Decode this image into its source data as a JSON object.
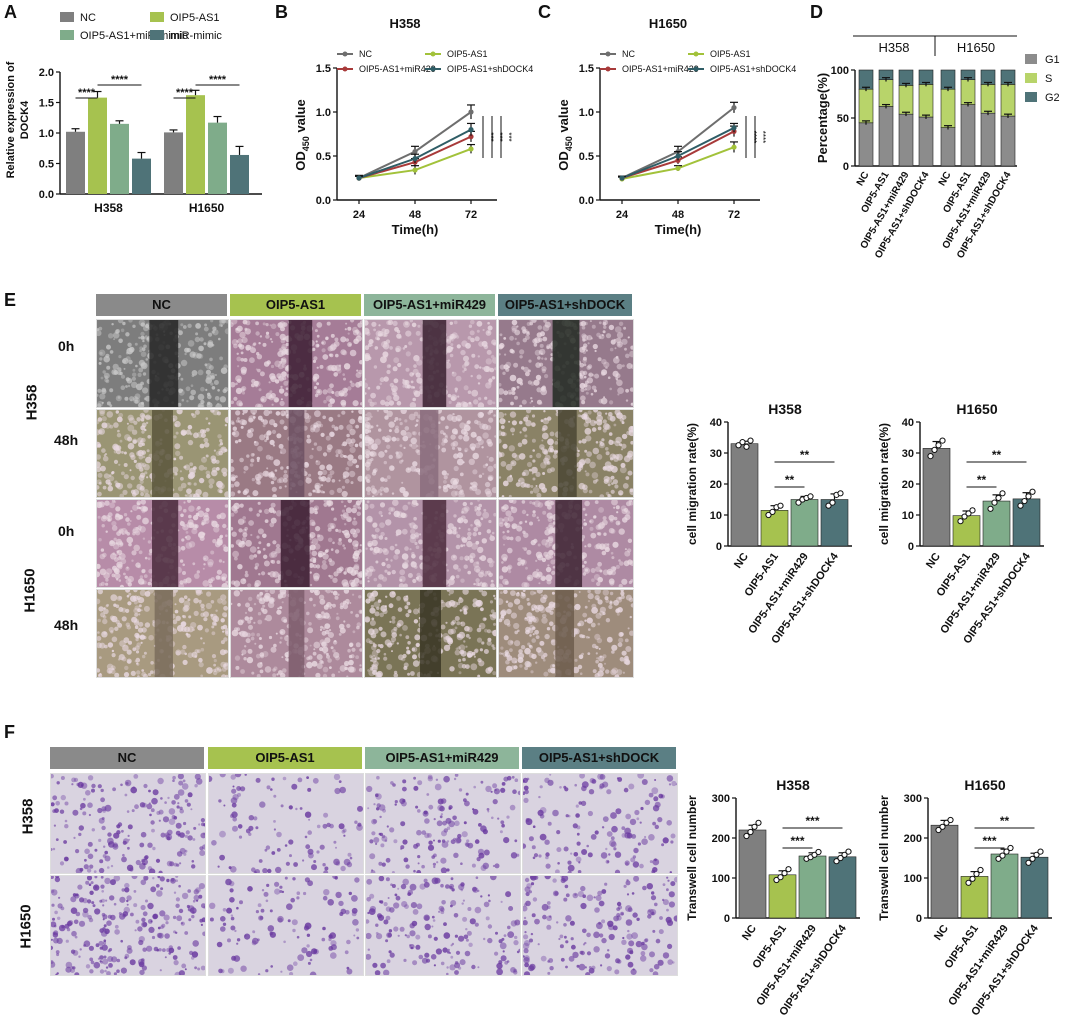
{
  "panel_letters": [
    "A",
    "B",
    "C",
    "D",
    "E",
    "F"
  ],
  "colors": {
    "nc": "#7f7f7f",
    "oip": "#a6c24f",
    "mir": "#7fac8a",
    "sh": "#4f7378",
    "line_nc": "#6e6e6e",
    "line_oip": "#a2c23a",
    "line_mir": "#a83a3a",
    "line_sh": "#2f5d66",
    "g1": "#8c8c8c",
    "s": "#b8d46a",
    "g2": "#4f7378",
    "scratch_grey": "#6f6f6f",
    "scratch_pink": "#b58aa0",
    "scratch_olive": "#8f8a60",
    "transwell_bg": "#d9d3e0",
    "transwell_cell": "#6a3aa0"
  },
  "panelE": {
    "headers": [
      "NC",
      "OIP5-AS1",
      "OIP5-AS1+miR429",
      "OIP5-AS1+shDOCK"
    ],
    "row_labels": [
      "0h",
      "48h",
      "0h",
      "48h"
    ],
    "group_labels": [
      "H358",
      "H1650"
    ]
  },
  "panelF": {
    "headers": [
      "NC",
      "OIP5-AS1",
      "OIP5-AS1+miR429",
      "OIP5-AS1+shDOCK"
    ],
    "group_labels": [
      "H358",
      "H1650"
    ]
  },
  "chart_data": [
    {
      "id": "A",
      "type": "bar",
      "categories": [
        "H358",
        "H1650"
      ],
      "series": [
        {
          "name": "NC",
          "values": [
            1.02,
            1.01
          ],
          "errors": [
            0.05,
            0.04
          ]
        },
        {
          "name": "OIP5-AS1",
          "values": [
            1.58,
            1.62
          ],
          "errors": [
            0.1,
            0.08
          ]
        },
        {
          "name": "OIP5-AS1+miR-mimic",
          "values": [
            1.15,
            1.17
          ],
          "errors": [
            0.05,
            0.1
          ]
        },
        {
          "name": "miR-mimic",
          "values": [
            0.58,
            0.64
          ],
          "errors": [
            0.1,
            0.14
          ]
        }
      ],
      "ylabel_lines": [
        "Relative expression of",
        "DOCK4"
      ],
      "ylim": [
        0,
        2.0
      ],
      "yticks": [
        "0.0",
        "0.5",
        "1.0",
        "1.5",
        "2.0"
      ],
      "annotations": [
        "****",
        "****",
        "****",
        "****"
      ],
      "legend_position": "top"
    },
    {
      "id": "B",
      "type": "line",
      "title": "H358",
      "x": [
        "24",
        "48",
        "72"
      ],
      "series": [
        {
          "name": "NC",
          "values": [
            0.25,
            0.55,
            1.0
          ],
          "errors": [
            0.03,
            0.06,
            0.08
          ]
        },
        {
          "name": "OIP5-AS1",
          "values": [
            0.25,
            0.34,
            0.58
          ],
          "errors": [
            0.02,
            0.05,
            0.05
          ]
        },
        {
          "name": "OIP5-AS1+miR429",
          "values": [
            0.25,
            0.43,
            0.72
          ],
          "errors": [
            0.02,
            0.04,
            0.06
          ]
        },
        {
          "name": "OIP5-AS1+shDOCK4",
          "values": [
            0.25,
            0.47,
            0.8
          ],
          "errors": [
            0.02,
            0.05,
            0.07
          ]
        }
      ],
      "xlabel": "Time(h)",
      "ylabel": "OD",
      "ylabel_sub": "450",
      "ylabel_tail": " value",
      "ylim": [
        0,
        1.5
      ],
      "yticks": [
        "0.0",
        "0.5",
        "1.0",
        "1.5"
      ],
      "annotations": [
        "***",
        "***",
        "***"
      ],
      "legend_position": "top"
    },
    {
      "id": "C",
      "type": "line",
      "title": "H1650",
      "x": [
        "24",
        "48",
        "72"
      ],
      "series": [
        {
          "name": "NC",
          "values": [
            0.25,
            0.55,
            1.05
          ],
          "errors": [
            0.02,
            0.06,
            0.06
          ]
        },
        {
          "name": "OIP5-AS1",
          "values": [
            0.24,
            0.36,
            0.6
          ],
          "errors": [
            0.02,
            0.03,
            0.06
          ]
        },
        {
          "name": "OIP5-AS1+miR429",
          "values": [
            0.25,
            0.45,
            0.78
          ],
          "errors": [
            0.02,
            0.04,
            0.06
          ]
        },
        {
          "name": "OIP5-AS1+shDOCK4",
          "values": [
            0.25,
            0.5,
            0.82
          ],
          "errors": [
            0.02,
            0.05,
            0.05
          ]
        }
      ],
      "xlabel": "Time(h)",
      "ylabel": "OD",
      "ylabel_sub": "450",
      "ylabel_tail": " value",
      "ylim": [
        0,
        1.5
      ],
      "yticks": [
        "0.0",
        "0.5",
        "1.0",
        "1.5"
      ],
      "annotations": [
        "****",
        "****"
      ],
      "legend_position": "top"
    },
    {
      "id": "D",
      "type": "bar",
      "stacked": true,
      "groups": [
        "H358",
        "H1650"
      ],
      "categories": [
        "NC",
        "OIP5-AS1",
        "OIP5-AS1+miR429",
        "OIP5-AS1+shDOCK4",
        "NC",
        "OIP5-AS1",
        "OIP5-AS1+miR429",
        "OIP5-AS1+shDOCK4"
      ],
      "series": [
        {
          "name": "G1",
          "values": [
            45,
            62,
            54,
            51,
            40,
            64,
            55,
            52
          ]
        },
        {
          "name": "S",
          "values": [
            35,
            28,
            30,
            34,
            40,
            26,
            30,
            33
          ]
        },
        {
          "name": "G2",
          "values": [
            20,
            10,
            16,
            15,
            20,
            10,
            15,
            15
          ]
        }
      ],
      "ylabel": "Percentage(%)",
      "ylim": [
        0,
        100
      ],
      "yticks": [
        "0",
        "50",
        "100"
      ],
      "legend_position": "right"
    },
    {
      "id": "E-H358",
      "type": "bar",
      "title": "H358",
      "categories": [
        "NC",
        "OIP5-AS1",
        "OIP5-AS1+miR429",
        "OIP5-AS1+shDOCK4"
      ],
      "values": [
        33,
        11.5,
        15,
        15
      ],
      "errors": [
        0.8,
        1.5,
        1.0,
        1.8
      ],
      "points": [
        [
          32.5,
          33.5,
          32,
          34
        ],
        [
          10,
          11,
          12.5,
          13
        ],
        [
          14,
          15,
          15.5,
          16
        ],
        [
          13,
          14,
          16.5,
          17
        ]
      ],
      "ylabel": "cell migration rate(%)",
      "ylim": [
        0,
        40
      ],
      "yticks": [
        "0",
        "10",
        "20",
        "30",
        "40"
      ],
      "annotations": [
        "**",
        "**"
      ]
    },
    {
      "id": "E-H1650",
      "type": "bar",
      "title": "H1650",
      "categories": [
        "NC",
        "OIP5-AS1",
        "OIP5-AS1+miR429",
        "OIP5-AS1+shDOCK4"
      ],
      "values": [
        31.5,
        9.8,
        14.5,
        15.2
      ],
      "errors": [
        2.2,
        1.5,
        2.0,
        2.0
      ],
      "points": [
        [
          29,
          31,
          32.5,
          34
        ],
        [
          8,
          9.5,
          10.5,
          11.5
        ],
        [
          12,
          14,
          15.5,
          17
        ],
        [
          13,
          14.5,
          16,
          17.5
        ]
      ],
      "ylabel": "cell migration rate(%)",
      "ylim": [
        0,
        40
      ],
      "yticks": [
        "0",
        "10",
        "20",
        "30",
        "40"
      ],
      "annotations": [
        "**",
        "**"
      ]
    },
    {
      "id": "F-H358",
      "type": "bar",
      "title": "H358",
      "categories": [
        "NC",
        "OIP5-AS1",
        "OIP5-AS1+miR429",
        "OIP5-AS1+shDOCK4"
      ],
      "values": [
        220,
        108,
        155,
        153
      ],
      "errors": [
        12,
        10,
        8,
        10
      ],
      "points": [
        [
          205,
          215,
          228,
          238
        ],
        [
          95,
          102,
          112,
          122
        ],
        [
          148,
          152,
          158,
          165
        ],
        [
          142,
          150,
          158,
          166
        ]
      ],
      "ylabel": "Transwell cell number",
      "ylim": [
        0,
        300
      ],
      "yticks": [
        "0",
        "100",
        "200",
        "300"
      ],
      "annotations": [
        "***",
        "***"
      ]
    },
    {
      "id": "F-H1650",
      "type": "bar",
      "title": "H1650",
      "categories": [
        "NC",
        "OIP5-AS1",
        "OIP5-AS1+miR429",
        "OIP5-AS1+shDOCK4"
      ],
      "values": [
        232,
        104,
        160,
        152
      ],
      "errors": [
        12,
        12,
        12,
        10
      ],
      "points": [
        [
          220,
          228,
          238,
          245
        ],
        [
          88,
          98,
          110,
          120
        ],
        [
          148,
          156,
          166,
          175
        ],
        [
          138,
          148,
          158,
          166
        ]
      ],
      "ylabel": "Transwell cell number",
      "ylim": [
        0,
        300
      ],
      "yticks": [
        "0",
        "100",
        "200",
        "300"
      ],
      "annotations": [
        "***",
        "**"
      ]
    }
  ]
}
